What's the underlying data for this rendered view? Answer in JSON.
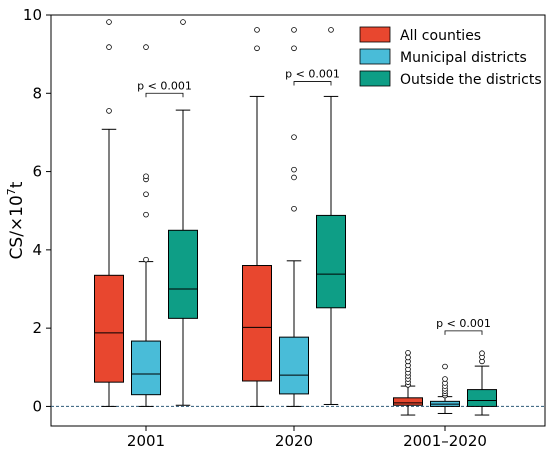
{
  "chart_data": {
    "type": "box",
    "ylabel_base": "CS/×10",
    "ylabel_exp": "7",
    "ylabel_unit": "t",
    "ylim": [
      -0.5,
      10
    ],
    "yticks": [
      "0",
      "2",
      "4",
      "6",
      "8",
      "10"
    ],
    "ytick_values": [
      0,
      2,
      4,
      6,
      8,
      10
    ],
    "categories": [
      "2001",
      "2020",
      "2001–2020"
    ],
    "reference_line": 0,
    "legend_position": "top-right",
    "series": [
      {
        "name": "All counties",
        "color": "#e8472f",
        "boxes": [
          {
            "whisker_low": 0.0,
            "q1": 0.62,
            "median": 1.88,
            "q3": 3.35,
            "whisker_high": 7.08,
            "outliers": [
              7.55,
              9.18,
              9.82
            ]
          },
          {
            "whisker_low": 0.0,
            "q1": 0.65,
            "median": 2.02,
            "q3": 3.6,
            "whisker_high": 7.92,
            "outliers": [
              9.15,
              9.62
            ]
          },
          {
            "whisker_low": -0.22,
            "q1": 0.03,
            "median": 0.09,
            "q3": 0.22,
            "whisker_high": 0.52,
            "outliers": [
              0.55,
              0.62,
              0.7,
              0.78,
              0.86,
              0.95,
              1.05,
              1.15,
              1.25,
              1.37
            ]
          }
        ]
      },
      {
        "name": "Municipal districts",
        "color": "#49bcd8",
        "boxes": [
          {
            "whisker_low": 0.0,
            "q1": 0.3,
            "median": 0.83,
            "q3": 1.67,
            "whisker_high": 3.7,
            "outliers": [
              3.75,
              4.9,
              5.42,
              5.8,
              5.88,
              9.18
            ]
          },
          {
            "whisker_low": 0.0,
            "q1": 0.32,
            "median": 0.8,
            "q3": 1.77,
            "whisker_high": 3.72,
            "outliers": [
              5.05,
              5.85,
              6.05,
              6.88,
              9.15,
              9.62
            ]
          },
          {
            "whisker_low": -0.18,
            "q1": 0.0,
            "median": 0.06,
            "q3": 0.13,
            "whisker_high": 0.25,
            "outliers": [
              0.28,
              0.33,
              0.39,
              0.45,
              0.52,
              0.6,
              0.7,
              1.02
            ]
          }
        ]
      },
      {
        "name": "Outside the districts",
        "color": "#0e9e86",
        "boxes": [
          {
            "whisker_low": 0.03,
            "q1": 2.25,
            "median": 3.0,
            "q3": 4.5,
            "whisker_high": 7.57,
            "outliers": [
              9.82
            ]
          },
          {
            "whisker_low": 0.05,
            "q1": 2.52,
            "median": 3.38,
            "q3": 4.88,
            "whisker_high": 7.92,
            "outliers": [
              9.62
            ]
          },
          {
            "whisker_low": -0.22,
            "q1": 0.0,
            "median": 0.15,
            "q3": 0.43,
            "whisker_high": 1.03,
            "outliers": [
              1.15,
              1.26,
              1.36
            ]
          }
        ]
      }
    ],
    "annotations": [
      {
        "text": "p < 0.001",
        "category_index": 0,
        "from_series": 1,
        "to_series": 2,
        "y": 8.0
      },
      {
        "text": "p < 0.001",
        "category_index": 1,
        "from_series": 1,
        "to_series": 2,
        "y": 8.3
      },
      {
        "text": "p < 0.001",
        "category_index": 2,
        "from_series": 1,
        "to_series": 2,
        "y": 1.93
      }
    ]
  }
}
